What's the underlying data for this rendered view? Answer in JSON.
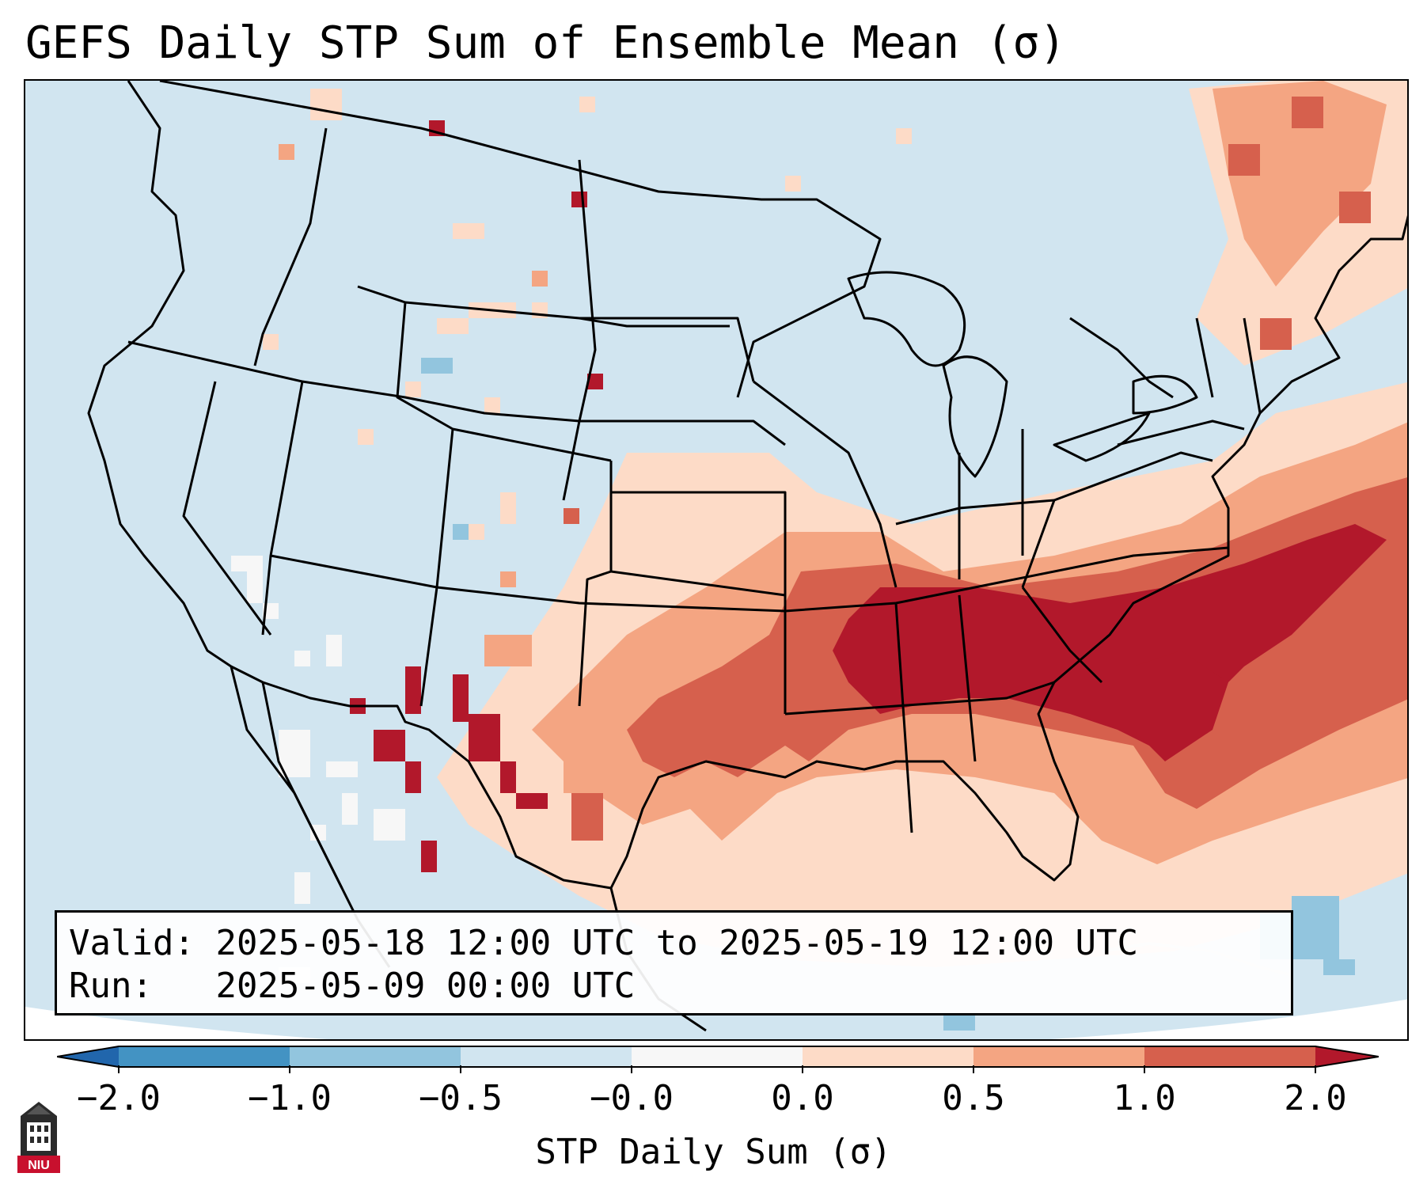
{
  "title": "GEFS Daily STP Sum of Ensemble Mean (σ)",
  "map": {
    "name": "CONUS STP daily sum anomaly map",
    "legend_colors": {
      "below_-1": "#4393c3",
      "-1_to_-0.5": "#92c5de",
      "-0.5_to_0": "#d1e5f0",
      "near_zero": "#f7f7f7",
      "0_to_0.5": "#fddbc7",
      "0.5_to_1": "#f4a582",
      "1_to_2": "#d6604d",
      "above_2": "#b2182b"
    }
  },
  "info": {
    "valid_label": "Valid:",
    "valid_value": "2025-05-18 12:00 UTC to 2025-05-19 12:00 UTC",
    "run_label": "Run:",
    "run_value": "2025-05-09 00:00 UTC"
  },
  "colorbar": {
    "label": "STP Daily Sum (σ)",
    "ticks": [
      "−2.0",
      "−1.0",
      "−0.5",
      "−0.0",
      "0.0",
      "0.5",
      "1.0",
      "2.0"
    ],
    "colors": [
      "#4393c3",
      "#92c5de",
      "#d1e5f0",
      "#f7f7f7",
      "#fddbc7",
      "#f4a582",
      "#d6604d"
    ],
    "extend_low_color": "#2166ac",
    "extend_high_color": "#b2182b"
  },
  "logo": {
    "text": "NIU"
  }
}
